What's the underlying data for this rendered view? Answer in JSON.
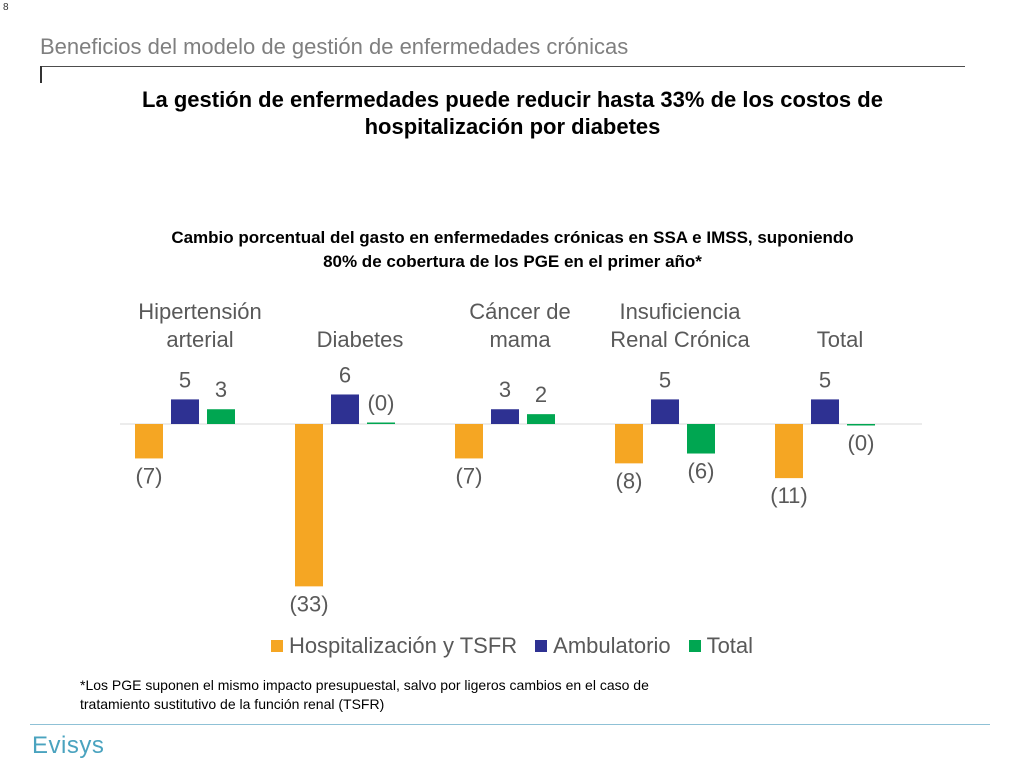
{
  "slide_number": "8",
  "slide_title": "Beneficios del modelo de gestión de enfermedades crónicas",
  "headline_line1": "La gestión de enfermedades puede reducir hasta 33% de los costos de",
  "headline_line2": "hospitalización por diabetes",
  "chart_caption_line1": "Cambio porcentual del gasto en enfermedades crónicas en SSA e IMSS, suponiendo",
  "chart_caption_line2": "80% de cobertura de los PGE en el primer año*",
  "footnote_line1": "*Los PGE suponen el mismo impacto presupuestal, salvo por ligeros cambios en el caso de",
  "footnote_line2": "tratamiento sustitutivo de la función renal (TSFR)",
  "logo_text": "Evisys",
  "colors": {
    "title_gray": "#7f7f7f",
    "label_gray": "#595959",
    "logo_blue": "#4aa3bf"
  },
  "chart_data": {
    "type": "bar",
    "categories": [
      [
        "Hipertensión",
        "arterial"
      ],
      [
        "Diabetes"
      ],
      [
        "Cáncer de",
        "mama"
      ],
      [
        "Insuficiencia",
        "Renal Crónica"
      ],
      [
        "Total"
      ]
    ],
    "series": [
      {
        "name": "Hospitalización y TSFR",
        "color": "#f5a623",
        "values": [
          -7,
          -33,
          -7,
          -8,
          -11
        ],
        "labels": [
          "(7)",
          "(33)",
          "(7)",
          "(8)",
          "(11)"
        ]
      },
      {
        "name": "Ambulatorio",
        "color": "#2e3192",
        "values": [
          5,
          6,
          3,
          5,
          5
        ],
        "labels": [
          "5",
          "6",
          "3",
          "5",
          "5"
        ]
      },
      {
        "name": "Total",
        "color": "#00a651",
        "values": [
          3,
          0,
          2,
          -6,
          -0.3
        ],
        "labels": [
          "3",
          "(0)",
          "2",
          "(6)",
          "(0)"
        ]
      }
    ],
    "ylim": [
      -33,
      6
    ],
    "category_label_position": "top",
    "legend_position": "bottom",
    "grid": false
  }
}
